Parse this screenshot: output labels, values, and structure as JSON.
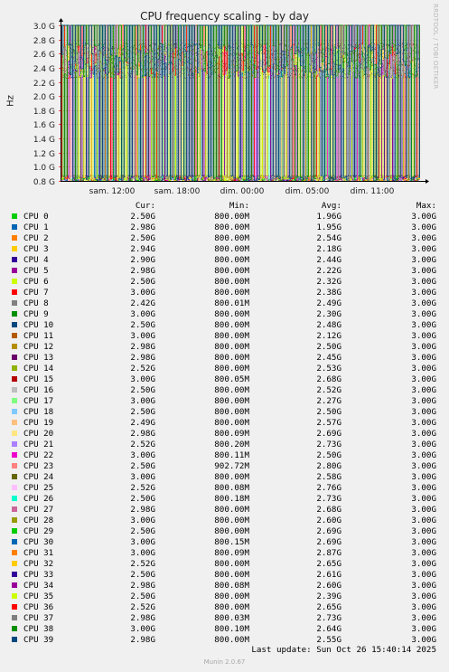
{
  "chart_data": {
    "type": "line",
    "title": "CPU frequency scaling - by day",
    "ylabel": "Hz",
    "y_ticks": [
      "0.8 G",
      "1.0 G",
      "1.2 G",
      "1.4 G",
      "1.6 G",
      "1.8 G",
      "2.0 G",
      "2.2 G",
      "2.4 G",
      "2.6 G",
      "2.8 G",
      "3.0 G"
    ],
    "y_tick_values": [
      0.8,
      1.0,
      1.2,
      1.4,
      1.6,
      1.8,
      2.0,
      2.2,
      2.4,
      2.6,
      2.8,
      3.0
    ],
    "ylim": [
      0.8,
      3.0
    ],
    "x_ticks": [
      "sam. 12:00",
      "sam. 18:00",
      "dim. 00:00",
      "dim. 05:00",
      "dim. 11:00"
    ],
    "grid": true,
    "series": [
      {
        "name": "CPU 0",
        "color": "#00cc00",
        "cur": "2.50G",
        "min": "800.00M",
        "avg": "1.96G",
        "max": "3.00G"
      },
      {
        "name": "CPU 1",
        "color": "#0066b3",
        "cur": "2.98G",
        "min": "800.00M",
        "avg": "1.95G",
        "max": "3.00G"
      },
      {
        "name": "CPU 2",
        "color": "#ff8000",
        "cur": "2.50G",
        "min": "800.00M",
        "avg": "2.54G",
        "max": "3.00G"
      },
      {
        "name": "CPU 3",
        "color": "#ffcc00",
        "cur": "2.94G",
        "min": "800.00M",
        "avg": "2.18G",
        "max": "3.00G"
      },
      {
        "name": "CPU 4",
        "color": "#330099",
        "cur": "2.90G",
        "min": "800.00M",
        "avg": "2.44G",
        "max": "3.00G"
      },
      {
        "name": "CPU 5",
        "color": "#990099",
        "cur": "2.98G",
        "min": "800.00M",
        "avg": "2.22G",
        "max": "3.00G"
      },
      {
        "name": "CPU 6",
        "color": "#ccff00",
        "cur": "2.50G",
        "min": "800.00M",
        "avg": "2.32G",
        "max": "3.00G"
      },
      {
        "name": "CPU 7",
        "color": "#ff0000",
        "cur": "3.00G",
        "min": "800.00M",
        "avg": "2.38G",
        "max": "3.00G"
      },
      {
        "name": "CPU 8",
        "color": "#808080",
        "cur": "2.42G",
        "min": "800.01M",
        "avg": "2.49G",
        "max": "3.00G"
      },
      {
        "name": "CPU 9",
        "color": "#008f00",
        "cur": "3.00G",
        "min": "800.00M",
        "avg": "2.30G",
        "max": "3.00G"
      },
      {
        "name": "CPU 10",
        "color": "#00487d",
        "cur": "2.50G",
        "min": "800.00M",
        "avg": "2.48G",
        "max": "3.00G"
      },
      {
        "name": "CPU 11",
        "color": "#b35a00",
        "cur": "3.00G",
        "min": "800.00M",
        "avg": "2.12G",
        "max": "3.00G"
      },
      {
        "name": "CPU 12",
        "color": "#b38f00",
        "cur": "2.98G",
        "min": "800.00M",
        "avg": "2.50G",
        "max": "3.00G"
      },
      {
        "name": "CPU 13",
        "color": "#6b006b",
        "cur": "2.98G",
        "min": "800.00M",
        "avg": "2.45G",
        "max": "3.00G"
      },
      {
        "name": "CPU 14",
        "color": "#8fb300",
        "cur": "2.52G",
        "min": "800.00M",
        "avg": "2.53G",
        "max": "3.00G"
      },
      {
        "name": "CPU 15",
        "color": "#b30000",
        "cur": "3.00G",
        "min": "800.05M",
        "avg": "2.68G",
        "max": "3.00G"
      },
      {
        "name": "CPU 16",
        "color": "#bebebe",
        "cur": "2.50G",
        "min": "800.00M",
        "avg": "2.52G",
        "max": "3.00G"
      },
      {
        "name": "CPU 17",
        "color": "#80ff80",
        "cur": "3.00G",
        "min": "800.00M",
        "avg": "2.27G",
        "max": "3.00G"
      },
      {
        "name": "CPU 18",
        "color": "#80c9ff",
        "cur": "2.50G",
        "min": "800.00M",
        "avg": "2.50G",
        "max": "3.00G"
      },
      {
        "name": "CPU 19",
        "color": "#ffc080",
        "cur": "2.49G",
        "min": "800.00M",
        "avg": "2.57G",
        "max": "3.00G"
      },
      {
        "name": "CPU 20",
        "color": "#ffe680",
        "cur": "2.98G",
        "min": "800.09M",
        "avg": "2.69G",
        "max": "3.00G"
      },
      {
        "name": "CPU 21",
        "color": "#aa80ff",
        "cur": "2.52G",
        "min": "800.20M",
        "avg": "2.73G",
        "max": "3.00G"
      },
      {
        "name": "CPU 22",
        "color": "#ee00cc",
        "cur": "3.00G",
        "min": "800.11M",
        "avg": "2.50G",
        "max": "3.00G"
      },
      {
        "name": "CPU 23",
        "color": "#ff8080",
        "cur": "2.50G",
        "min": "902.72M",
        "avg": "2.80G",
        "max": "3.00G"
      },
      {
        "name": "CPU 24",
        "color": "#666600",
        "cur": "3.00G",
        "min": "800.00M",
        "avg": "2.58G",
        "max": "3.00G"
      },
      {
        "name": "CPU 25",
        "color": "#ffbfff",
        "cur": "2.52G",
        "min": "800.08M",
        "avg": "2.76G",
        "max": "3.00G"
      },
      {
        "name": "CPU 26",
        "color": "#00ffcc",
        "cur": "2.50G",
        "min": "800.18M",
        "avg": "2.73G",
        "max": "3.00G"
      },
      {
        "name": "CPU 27",
        "color": "#cc6699",
        "cur": "2.98G",
        "min": "800.00M",
        "avg": "2.68G",
        "max": "3.00G"
      },
      {
        "name": "CPU 28",
        "color": "#999900",
        "cur": "3.00G",
        "min": "800.00M",
        "avg": "2.60G",
        "max": "3.00G"
      },
      {
        "name": "CPU 29",
        "color": "#00cc00",
        "cur": "2.50G",
        "min": "800.00M",
        "avg": "2.69G",
        "max": "3.00G"
      },
      {
        "name": "CPU 30",
        "color": "#0066b3",
        "cur": "3.00G",
        "min": "800.15M",
        "avg": "2.69G",
        "max": "3.00G"
      },
      {
        "name": "CPU 31",
        "color": "#ff8000",
        "cur": "3.00G",
        "min": "800.09M",
        "avg": "2.87G",
        "max": "3.00G"
      },
      {
        "name": "CPU 32",
        "color": "#ffcc00",
        "cur": "2.52G",
        "min": "800.00M",
        "avg": "2.65G",
        "max": "3.00G"
      },
      {
        "name": "CPU 33",
        "color": "#330099",
        "cur": "2.50G",
        "min": "800.00M",
        "avg": "2.61G",
        "max": "3.00G"
      },
      {
        "name": "CPU 34",
        "color": "#990099",
        "cur": "2.98G",
        "min": "800.08M",
        "avg": "2.60G",
        "max": "3.00G"
      },
      {
        "name": "CPU 35",
        "color": "#ccff00",
        "cur": "2.50G",
        "min": "800.00M",
        "avg": "2.39G",
        "max": "3.00G"
      },
      {
        "name": "CPU 36",
        "color": "#ff0000",
        "cur": "2.52G",
        "min": "800.00M",
        "avg": "2.65G",
        "max": "3.00G"
      },
      {
        "name": "CPU 37",
        "color": "#808080",
        "cur": "2.98G",
        "min": "800.03M",
        "avg": "2.73G",
        "max": "3.00G"
      },
      {
        "name": "CPU 38",
        "color": "#008f00",
        "cur": "3.00G",
        "min": "800.10M",
        "avg": "2.64G",
        "max": "3.00G"
      },
      {
        "name": "CPU 39",
        "color": "#00487d",
        "cur": "2.98G",
        "min": "800.00M",
        "avg": "2.55G",
        "max": "3.00G"
      }
    ]
  },
  "legend_headers": {
    "cur": "Cur:",
    "min": "Min:",
    "avg": "Avg:",
    "max": "Max:"
  },
  "watermark": "RRDTOOL / TOBI OETIKER",
  "last_update": "Last update: Sun Oct 26 15:40:14 2025",
  "munin_version": "Munin 2.0.67"
}
